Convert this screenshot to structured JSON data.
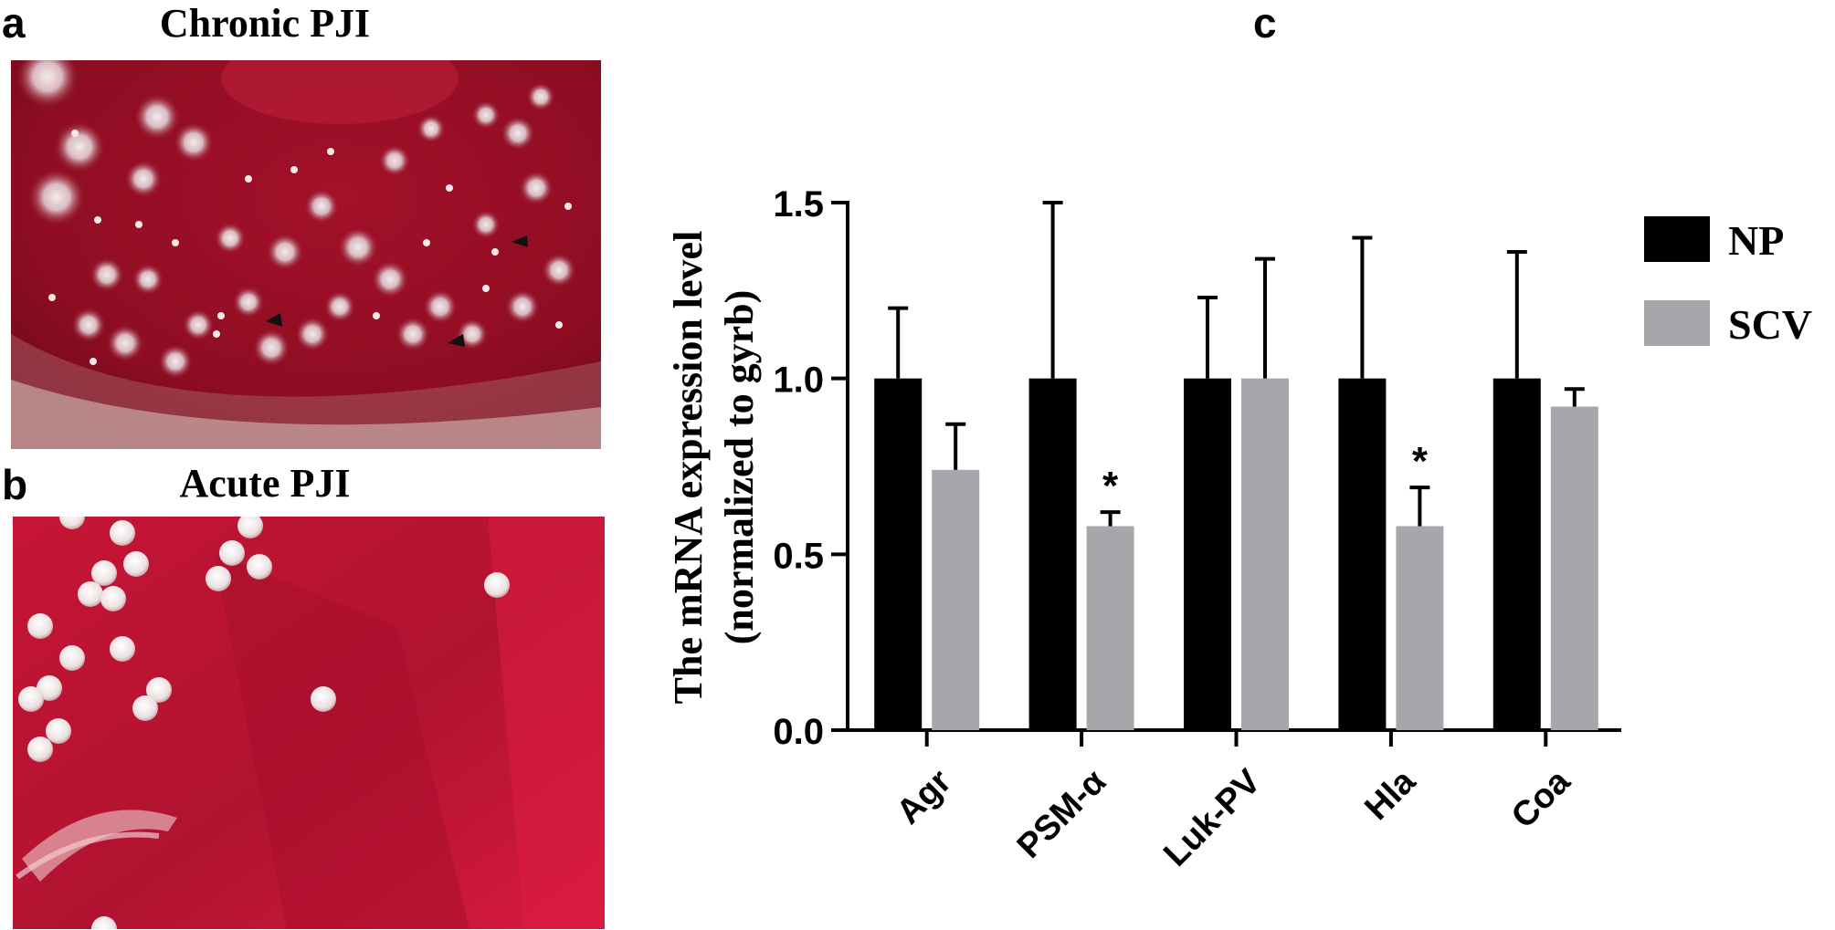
{
  "panels": {
    "a": {
      "letter": "a",
      "title": "Chronic PJI"
    },
    "b": {
      "letter": "b",
      "title": "Acute PJI"
    },
    "c": {
      "letter": "c"
    }
  },
  "colors": {
    "agar_dark": "#8e0d22",
    "agar_mid": "#b3122e",
    "agar_bright": "#d3173a",
    "colony": "#efe6e6",
    "np_bar": "#000000",
    "scv_bar": "#a7a7ab"
  },
  "chart_data": {
    "type": "bar",
    "categories": [
      "Agr",
      "PSM-α",
      "Luk-PV",
      "Hla",
      "Coa"
    ],
    "series": [
      {
        "name": "NP",
        "values": [
          1.0,
          1.0,
          1.0,
          1.0,
          1.0
        ],
        "error": [
          0.2,
          0.5,
          0.23,
          0.4,
          0.36
        ],
        "color": "#000000"
      },
      {
        "name": "SCV",
        "values": [
          0.74,
          0.58,
          1.0,
          0.58,
          0.92
        ],
        "error": [
          0.13,
          0.04,
          0.34,
          0.11,
          0.05
        ],
        "color": "#a7a7ab"
      }
    ],
    "significance": [
      "",
      "*",
      "",
      "*",
      ""
    ],
    "ylabel_line1": "The mRNA expression level",
    "ylabel_line2": "(normalized to gyrb)",
    "yticks": [
      "0.0",
      "0.5",
      "1.0",
      "1.5"
    ],
    "ylim": [
      0,
      1.5
    ],
    "legend_position": "top-right"
  }
}
